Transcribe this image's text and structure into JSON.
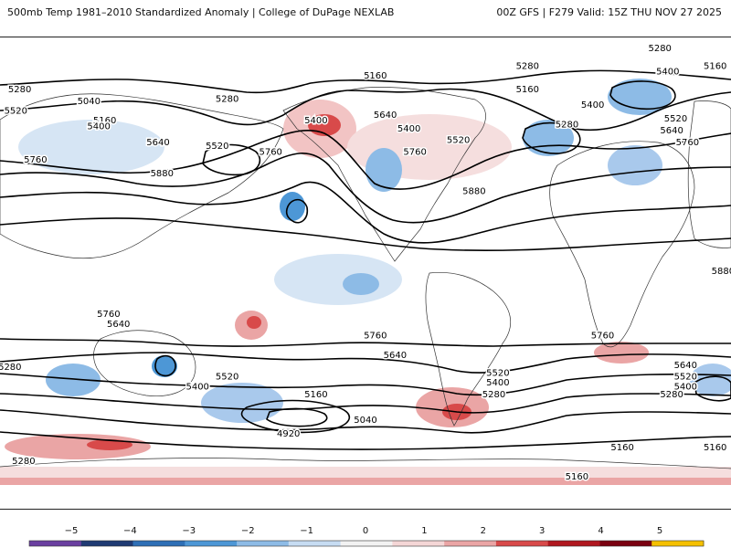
{
  "header": {
    "title_left": "500mb Temp 1981–2010 Standardized Anomaly | College of DuPage NEXLAB",
    "title_right": "00Z GFS | F279 Valid: 15Z THU NOV 27 2025"
  },
  "contour_labels": [
    {
      "text": "5160",
      "lon": 10,
      "lat": 75
    },
    {
      "text": "5280",
      "lon": -170,
      "lat": 68
    },
    {
      "text": "5040",
      "lon": -135,
      "lat": 62
    },
    {
      "text": "5520",
      "lon": -172,
      "lat": 57
    },
    {
      "text": "5160",
      "lon": -127,
      "lat": 52
    },
    {
      "text": "5400",
      "lon": -130,
      "lat": 49
    },
    {
      "text": "5280",
      "lon": -65,
      "lat": 63
    },
    {
      "text": "5640",
      "lon": -100,
      "lat": 41
    },
    {
      "text": "5520",
      "lon": -70,
      "lat": 39
    },
    {
      "text": "5760",
      "lon": -43,
      "lat": 36
    },
    {
      "text": "5400",
      "lon": -20,
      "lat": 52
    },
    {
      "text": "5640",
      "lon": 15,
      "lat": 55
    },
    {
      "text": "5400",
      "lon": 27,
      "lat": 48
    },
    {
      "text": "5520",
      "lon": 52,
      "lat": 42
    },
    {
      "text": "5760",
      "lon": 30,
      "lat": 36
    },
    {
      "text": "5760",
      "lon": -162,
      "lat": 32
    },
    {
      "text": "5880",
      "lon": -98,
      "lat": 25
    },
    {
      "text": "5280",
      "lon": 87,
      "lat": 80
    },
    {
      "text": "5160",
      "lon": 87,
      "lat": 68
    },
    {
      "text": "5280",
      "lon": 107,
      "lat": 50
    },
    {
      "text": "5400",
      "lon": 120,
      "lat": 60
    },
    {
      "text": "5640",
      "lon": 160,
      "lat": 47
    },
    {
      "text": "5520",
      "lon": 162,
      "lat": 53
    },
    {
      "text": "5760",
      "lon": 168,
      "lat": 41
    },
    {
      "text": "5160",
      "lon": 182,
      "lat": 80
    },
    {
      "text": "5280",
      "lon": 154,
      "lat": 89
    },
    {
      "text": "5400",
      "lon": 158,
      "lat": 77
    },
    {
      "text": "5880",
      "lon": 60,
      "lat": 16
    },
    {
      "text": "5880",
      "lon": 186,
      "lat": -25
    },
    {
      "text": "5760",
      "lon": -125,
      "lat": -47
    },
    {
      "text": "5640",
      "lon": -120,
      "lat": -52
    },
    {
      "text": "5280",
      "lon": -175,
      "lat": -74
    },
    {
      "text": "5520",
      "lon": -65,
      "lat": -79
    },
    {
      "text": "5400",
      "lon": -80,
      "lat": -84
    },
    {
      "text": "5160",
      "lon": -20,
      "lat": -88
    },
    {
      "text": "4920",
      "lon": -34,
      "lat": -108
    },
    {
      "text": "5040",
      "lon": 5,
      "lat": -101
    },
    {
      "text": "5280",
      "lon": -168,
      "lat": -122
    },
    {
      "text": "5760",
      "lon": 10,
      "lat": -58
    },
    {
      "text": "5640",
      "lon": 20,
      "lat": -68
    },
    {
      "text": "5520",
      "lon": 72,
      "lat": -77
    },
    {
      "text": "5400",
      "lon": 72,
      "lat": -82
    },
    {
      "text": "5280",
      "lon": 70,
      "lat": -88
    },
    {
      "text": "5760",
      "lon": 125,
      "lat": -58
    },
    {
      "text": "5640",
      "lon": 167,
      "lat": -73
    },
    {
      "text": "5520",
      "lon": 167,
      "lat": -79
    },
    {
      "text": "5400",
      "lon": 167,
      "lat": -84
    },
    {
      "text": "5280",
      "lon": 160,
      "lat": -88
    },
    {
      "text": "5160",
      "lon": 135,
      "lat": -115
    },
    {
      "text": "5160",
      "lon": 182,
      "lat": -115
    },
    {
      "text": "5160",
      "lon": 112,
      "lat": -130
    }
  ],
  "colorbar": {
    "ticks": [
      "−5",
      "−4",
      "−3",
      "−2",
      "−1",
      "0",
      "1",
      "2",
      "3",
      "4",
      "5"
    ],
    "colors": [
      "#6a3fa0",
      "#1f3a73",
      "#2e6fb6",
      "#4d97d6",
      "#8dbbe6",
      "#c6dcf2",
      "#f2f2f2",
      "#f4d6d6",
      "#eaa5a5",
      "#d84a4a",
      "#b0171f",
      "#7a0010",
      "#f5c000"
    ]
  }
}
